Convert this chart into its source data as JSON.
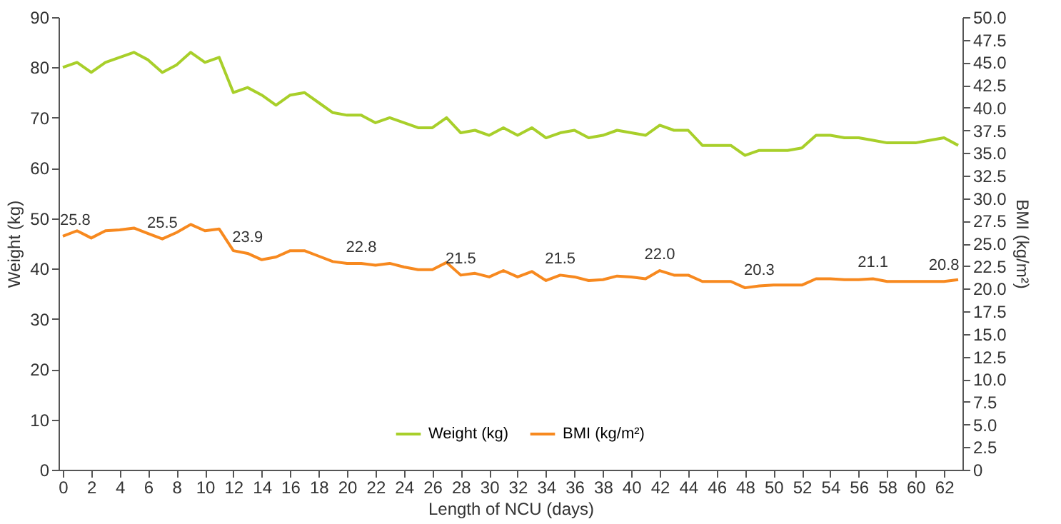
{
  "chart_data": {
    "type": "line",
    "xlabel": "Length of NCU (days)",
    "ylabel": "Weight (kg)",
    "y2label": "BMI (kg/m²)",
    "x": [
      0,
      1,
      2,
      3,
      4,
      5,
      6,
      7,
      8,
      9,
      10,
      11,
      12,
      13,
      14,
      15,
      16,
      17,
      18,
      19,
      20,
      21,
      22,
      23,
      24,
      25,
      26,
      27,
      28,
      29,
      30,
      31,
      32,
      33,
      34,
      35,
      36,
      37,
      38,
      39,
      40,
      41,
      42,
      43,
      44,
      45,
      46,
      47,
      48,
      49,
      50,
      51,
      52,
      53,
      54,
      55,
      56,
      57,
      58,
      59,
      60,
      61,
      62,
      63
    ],
    "series": [
      {
        "name": "Weight (kg)",
        "color": "#a8cf2a",
        "values": [
          80,
          81,
          79,
          81,
          82,
          83,
          81.5,
          79,
          80.5,
          83,
          81,
          82,
          75,
          76,
          74.5,
          72.5,
          74.5,
          75,
          73,
          71,
          70.5,
          70.5,
          69,
          70,
          69,
          68,
          68,
          70,
          67,
          67.5,
          66.5,
          68,
          66.5,
          68,
          66,
          67,
          67.5,
          66,
          66.5,
          67.5,
          67,
          66.5,
          68.5,
          67.5,
          67.5,
          64.5,
          64.5,
          64.5,
          62.5,
          63.5,
          63.5,
          63.5,
          64,
          66.5,
          66.5,
          66,
          66,
          65.5,
          65,
          65,
          65,
          65.5,
          66,
          64.5
        ]
      },
      {
        "name": "BMI (kg/m²)",
        "color": "#f7891f",
        "axis": "y2",
        "values": [
          25.8,
          26.4,
          25.6,
          26.4,
          26.5,
          26.7,
          26.1,
          25.5,
          26.2,
          27.1,
          26.4,
          26.6,
          24.2,
          23.9,
          23.2,
          23.5,
          24.2,
          24.2,
          23.6,
          23.0,
          22.8,
          22.8,
          22.6,
          22.8,
          22.4,
          22.1,
          22.1,
          22.9,
          21.5,
          21.7,
          21.3,
          22.0,
          21.3,
          21.9,
          20.9,
          21.5,
          21.3,
          20.9,
          21.0,
          21.4,
          21.3,
          21.1,
          22.0,
          21.5,
          21.5,
          20.8,
          20.8,
          20.8,
          20.1,
          20.3,
          20.4,
          20.4,
          20.4,
          21.1,
          21.1,
          21.0,
          21.0,
          21.1,
          20.8,
          20.8,
          20.8,
          20.8,
          20.8,
          21.0
        ],
        "value_labels": [
          "25.8",
          null,
          null,
          null,
          null,
          null,
          null,
          "25.5",
          null,
          null,
          null,
          null,
          null,
          "23.9",
          null,
          null,
          null,
          null,
          null,
          null,
          null,
          "22.8",
          null,
          null,
          null,
          null,
          null,
          null,
          "21.5",
          null,
          null,
          null,
          null,
          null,
          null,
          "21.5",
          null,
          null,
          null,
          null,
          null,
          null,
          "22.0",
          null,
          null,
          null,
          null,
          null,
          null,
          "20.3",
          null,
          null,
          null,
          null,
          null,
          null,
          null,
          "21.1",
          null,
          null,
          null,
          null,
          "20.8",
          null
        ]
      }
    ],
    "xlim": [
      -0.3,
      63.3
    ],
    "xticks": [
      0,
      2,
      4,
      6,
      8,
      10,
      12,
      14,
      16,
      18,
      20,
      22,
      24,
      26,
      28,
      30,
      32,
      34,
      36,
      38,
      40,
      42,
      44,
      46,
      48,
      50,
      52,
      54,
      56,
      58,
      60,
      62
    ],
    "ylim": [
      0,
      90
    ],
    "yticks": [
      0,
      10,
      20,
      30,
      40,
      50,
      60,
      70,
      80,
      90
    ],
    "y2lim": [
      0,
      50
    ],
    "y2ticks": [
      0,
      2.5,
      {
        "value": 5,
        "label": "5.0"
      },
      7.5,
      {
        "value": 10,
        "label": "10.0"
      },
      12.5,
      {
        "value": 15,
        "label": "15.0"
      },
      17.5,
      {
        "value": 20,
        "label": "20.0"
      },
      22.5,
      {
        "value": 25,
        "label": "25.0"
      },
      27.5,
      {
        "value": 30,
        "label": "30.0"
      },
      32.5,
      {
        "value": 35,
        "label": "35.0"
      },
      37.5,
      {
        "value": 40,
        "label": "40.0"
      },
      42.5,
      {
        "value": 45,
        "label": "45.0"
      },
      47.5,
      {
        "value": 50,
        "label": "50.0"
      }
    ],
    "grid": false,
    "legend": "bottom",
    "marker": "none",
    "line_style": "solid"
  }
}
